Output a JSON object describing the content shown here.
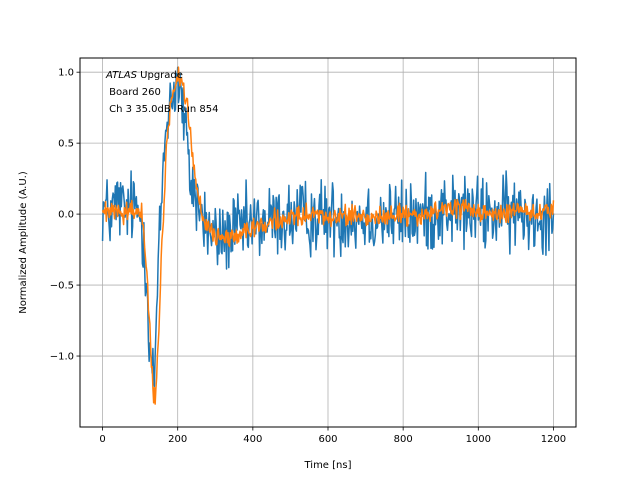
{
  "chart_data": {
    "type": "line",
    "title": "",
    "xlabel": "Time [ns]",
    "ylabel": "Normalized Amplitude (A.U.)",
    "xlim": [
      -60,
      1260
    ],
    "ylim": [
      -1.5,
      1.1
    ],
    "xticks": [
      0,
      200,
      400,
      600,
      800,
      1000,
      1200
    ],
    "yticks": [
      -1.0,
      -0.5,
      0.0,
      0.5,
      1.0
    ],
    "xtick_labels": [
      "0",
      "200",
      "400",
      "600",
      "800",
      "1000",
      "1200"
    ],
    "ytick_labels": [
      "−1.0",
      "−0.5",
      "0.0",
      "0.5",
      "1.0"
    ],
    "grid": true,
    "legend": "none",
    "annotations": {
      "line1_italic": "ATLAS",
      "line1_rest": " Upgrade",
      "line2": " Board 260",
      "line3": " Ch 3 35.0dB  Run 854"
    },
    "series": [
      {
        "color": "#1f77b4",
        "x": [
          0,
          20,
          40,
          60,
          80,
          100,
          115,
          125,
          135,
          140,
          145,
          155,
          165,
          175,
          185,
          195,
          200,
          210,
          220,
          230,
          250,
          270,
          290,
          310,
          330,
          350,
          400,
          450,
          500,
          550,
          600,
          650,
          700,
          750,
          800,
          850,
          900,
          950,
          1000,
          1050,
          1100,
          1150,
          1200
        ],
        "y": [
          0.05,
          0.0,
          0.08,
          0.02,
          0.05,
          0.0,
          -0.3,
          -0.9,
          -1.15,
          -1.1,
          -0.6,
          0.0,
          0.5,
          0.75,
          0.85,
          0.9,
          0.95,
          0.8,
          0.6,
          0.3,
          0.1,
          -0.05,
          -0.15,
          -0.18,
          -0.15,
          -0.12,
          -0.08,
          -0.05,
          -0.03,
          -0.02,
          -0.02,
          -0.03,
          -0.02,
          -0.02,
          -0.03,
          -0.02,
          0.03,
          0.02,
          0.0,
          0.0,
          0.0,
          0.0,
          0.02
        ],
        "noise": 0.13
      },
      {
        "color": "#ff7f0e",
        "x": [
          0,
          20,
          40,
          60,
          80,
          100,
          110,
          120,
          130,
          137,
          140,
          145,
          150,
          160,
          170,
          180,
          190,
          200,
          210,
          220,
          230,
          240,
          250,
          260,
          270,
          280,
          300,
          320,
          350,
          400,
          450,
          500,
          550,
          600,
          650,
          700,
          750,
          800,
          850,
          900,
          950,
          1000,
          1050,
          1100,
          1150,
          1200
        ],
        "y": [
          0.02,
          0.0,
          0.01,
          0.01,
          0.03,
          0.05,
          -0.1,
          -0.55,
          -1.05,
          -1.3,
          -1.35,
          -1.1,
          -0.8,
          -0.1,
          0.45,
          0.75,
          0.9,
          0.98,
          0.95,
          0.85,
          0.65,
          0.4,
          0.2,
          0.05,
          -0.05,
          -0.1,
          -0.15,
          -0.17,
          -0.15,
          -0.1,
          -0.05,
          -0.02,
          -0.02,
          -0.01,
          -0.02,
          -0.03,
          -0.01,
          0.0,
          -0.03,
          0.04,
          0.04,
          0.0,
          0.0,
          0.03,
          0.0,
          0.02
        ],
        "noise": 0.035
      }
    ]
  }
}
